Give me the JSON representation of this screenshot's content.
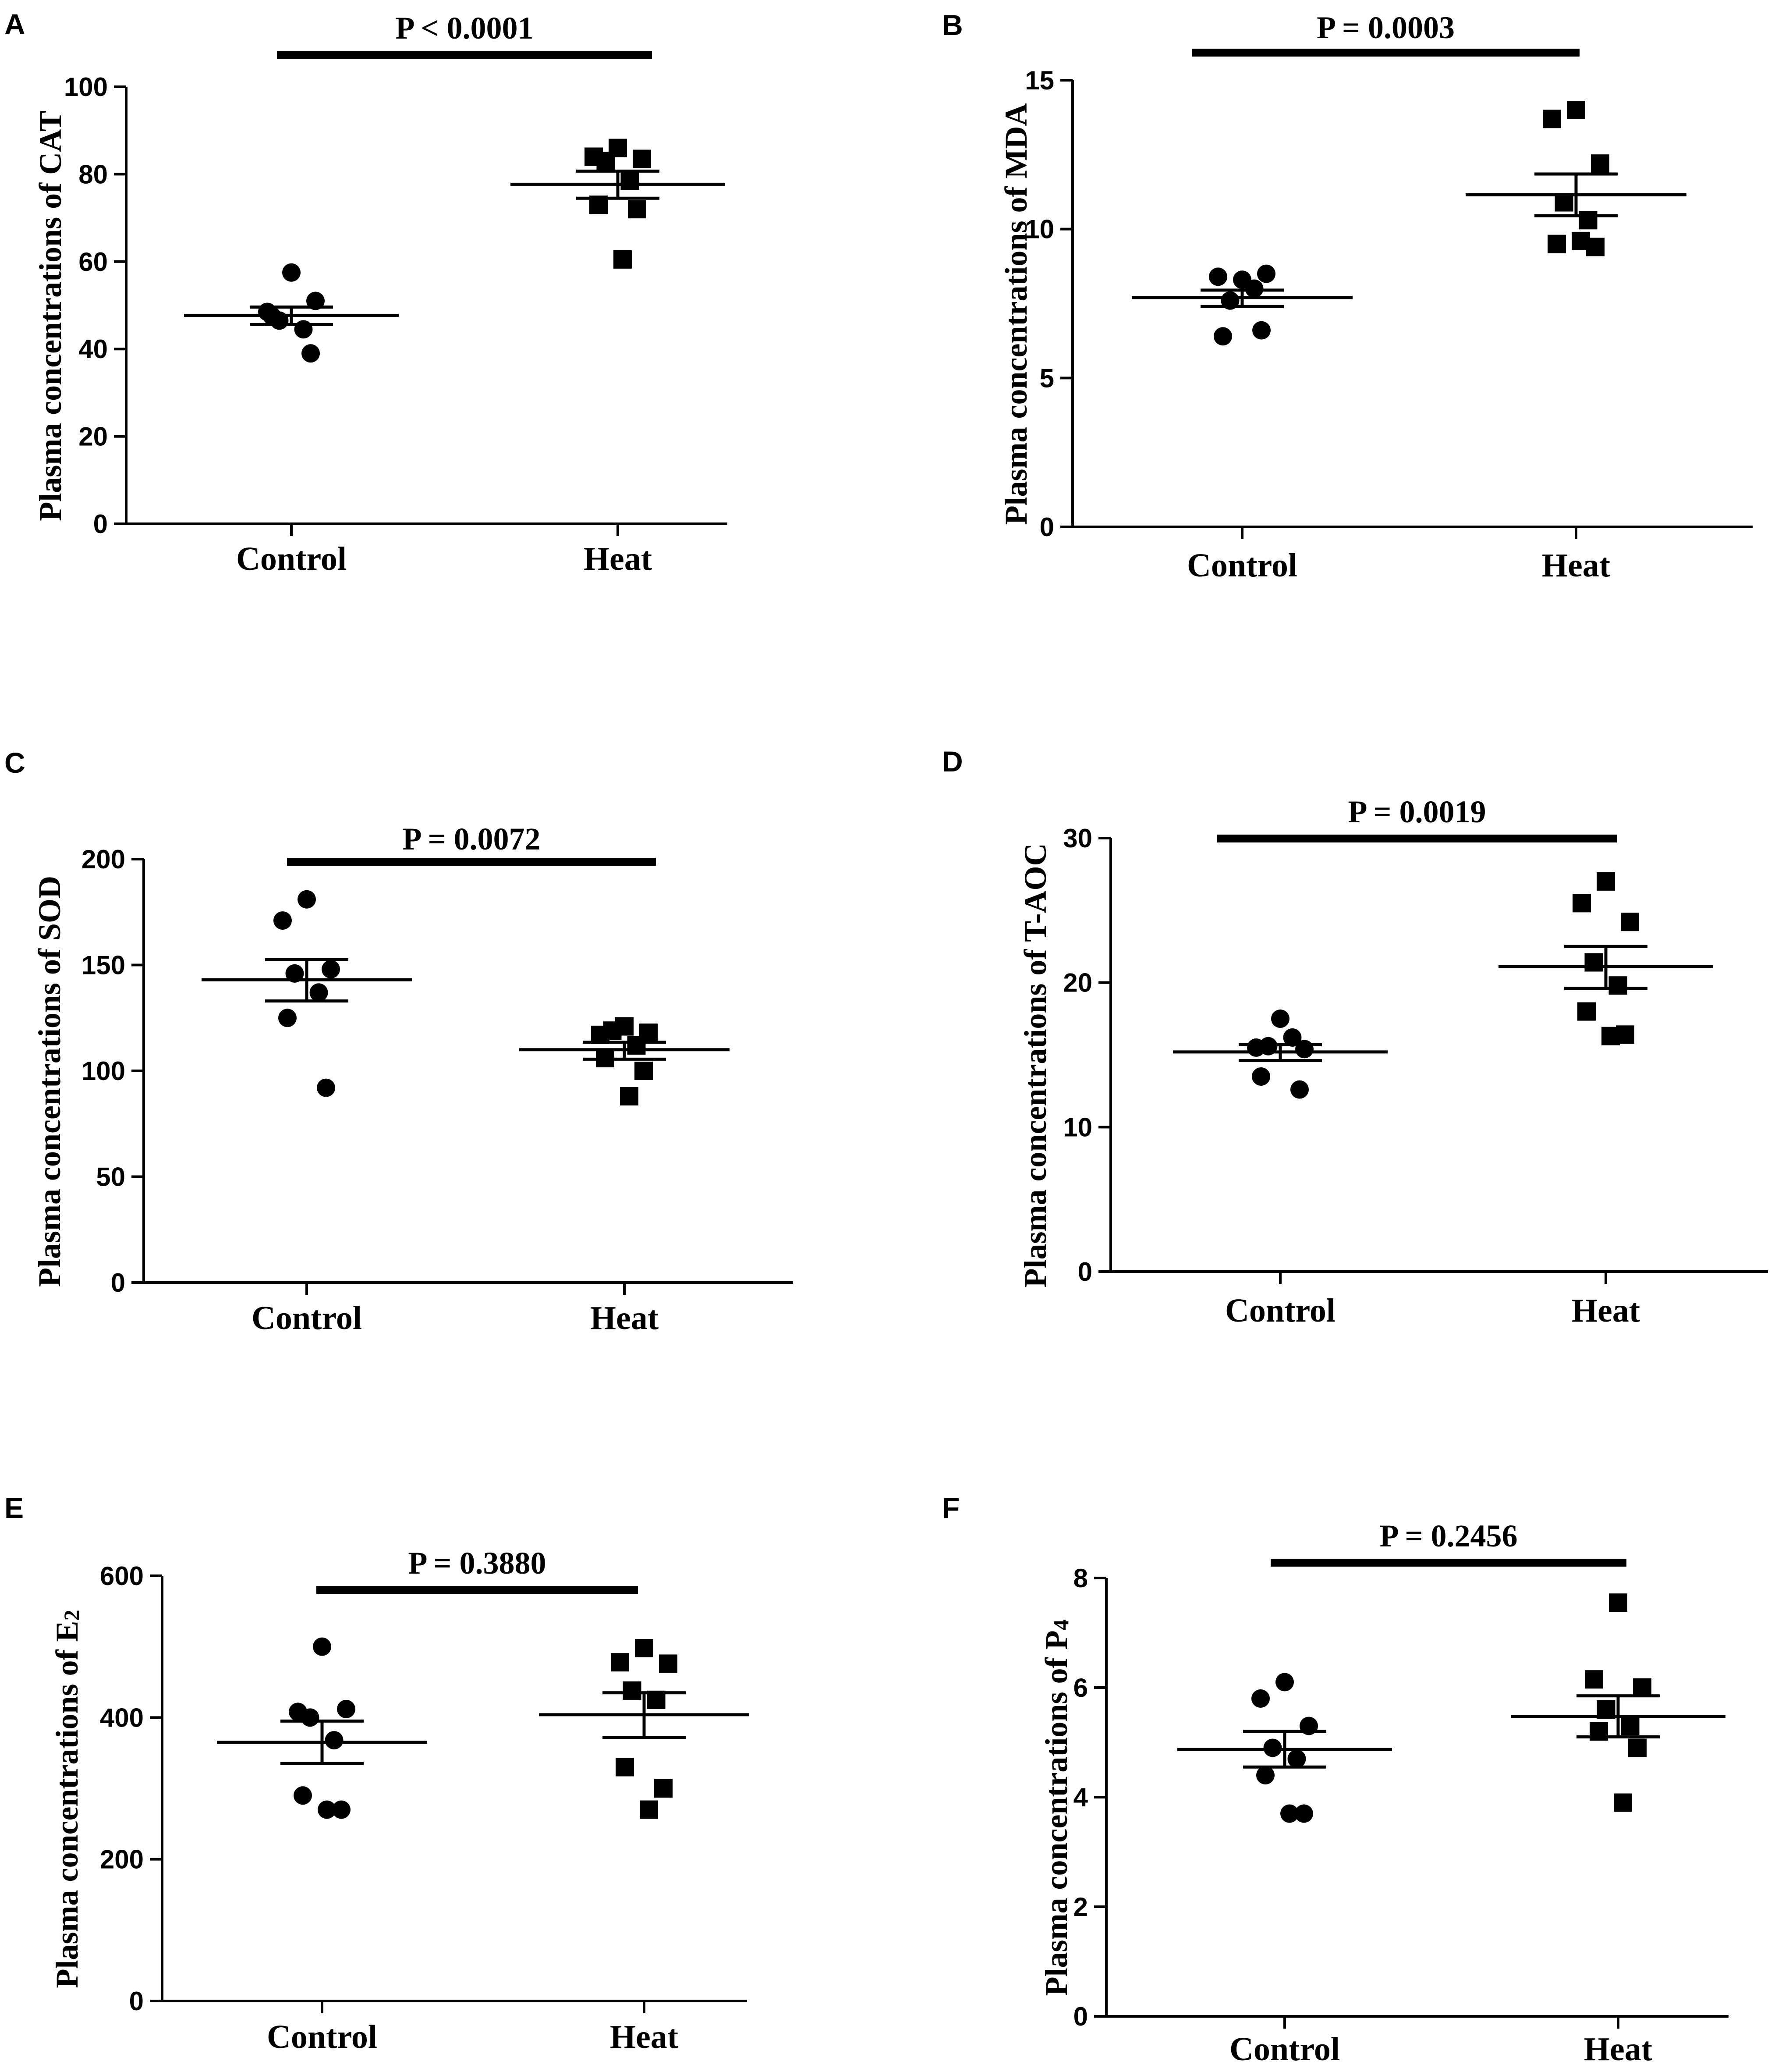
{
  "chart_data": [
    {
      "panel": "A",
      "type": "scatter",
      "ylabel": "Plasma concentrations of CAT",
      "ylabel_sub": "",
      "categories": [
        "Control",
        "Heat"
      ],
      "yticks": [
        0,
        20,
        40,
        60,
        80,
        100
      ],
      "ylim": [
        0,
        100
      ],
      "pvalue": "P < 0.0001",
      "series": [
        {
          "name": "Control",
          "marker": "circle",
          "values": [
            57.5,
            48.5,
            51,
            46.5,
            44.5,
            47.5,
            39
          ],
          "mean": 47.7,
          "sem_upper": 49.6,
          "sem_lower": 45.6
        },
        {
          "name": "Heat",
          "marker": "square",
          "values": [
            86,
            84,
            83.5,
            83,
            78.5,
            73,
            72,
            60.5
          ],
          "mean": 77.7,
          "sem_upper": 80.7,
          "sem_lower": 74.5
        }
      ]
    },
    {
      "panel": "B",
      "type": "scatter",
      "ylabel": "Plasma concentrations of MDA",
      "ylabel_sub": "",
      "categories": [
        "Control",
        "Heat"
      ],
      "yticks": [
        0,
        5,
        10,
        15
      ],
      "ylim": [
        0,
        15
      ],
      "pvalue": "P = 0.0003",
      "series": [
        {
          "name": "Control",
          "marker": "circle",
          "values": [
            8.3,
            8.4,
            8.5,
            7.6,
            8.0,
            6.4,
            6.6
          ],
          "mean": 7.7,
          "sem_upper": 7.95,
          "sem_lower": 7.4
        },
        {
          "name": "Heat",
          "marker": "square",
          "values": [
            14.0,
            13.7,
            12.2,
            10.9,
            10.3,
            9.5,
            9.4,
            9.6
          ],
          "mean": 11.15,
          "sem_upper": 11.85,
          "sem_lower": 10.45
        }
      ]
    },
    {
      "panel": "C",
      "type": "scatter",
      "ylabel": "Plasma concentrations of SOD",
      "ylabel_sub": "",
      "categories": [
        "Control",
        "Heat"
      ],
      "yticks": [
        0,
        50,
        100,
        150,
        200
      ],
      "ylim": [
        0,
        200
      ],
      "pvalue": "P = 0.0072",
      "series": [
        {
          "name": "Control",
          "marker": "circle",
          "values": [
            181,
            171,
            148,
            146,
            137,
            125,
            92
          ],
          "mean": 143,
          "sem_upper": 152.5,
          "sem_lower": 133
        },
        {
          "name": "Heat",
          "marker": "square",
          "values": [
            121,
            117,
            118,
            119,
            112,
            106,
            100,
            88
          ],
          "mean": 110,
          "sem_upper": 113.5,
          "sem_lower": 105.5
        }
      ]
    },
    {
      "panel": "D",
      "type": "scatter",
      "ylabel": "Plasma concentrations of T-AOC",
      "ylabel_sub": "",
      "categories": [
        "Control",
        "Heat"
      ],
      "yticks": [
        0,
        10,
        20,
        30
      ],
      "ylim": [
        0,
        30
      ],
      "pvalue": "P = 0.0019",
      "series": [
        {
          "name": "Control",
          "marker": "circle",
          "values": [
            17.5,
            15.5,
            15.4,
            15.6,
            16.2,
            13.5,
            12.6
          ],
          "mean": 15.2,
          "sem_upper": 15.7,
          "sem_lower": 14.6
        },
        {
          "name": "Heat",
          "marker": "square",
          "values": [
            27.0,
            25.5,
            24.2,
            21.4,
            19.8,
            18.0,
            16.4,
            16.3
          ],
          "mean": 21.1,
          "sem_upper": 22.5,
          "sem_lower": 19.6
        }
      ]
    },
    {
      "panel": "E",
      "type": "scatter",
      "ylabel": "Plasma concentrations of E",
      "ylabel_sub": "2",
      "categories": [
        "Control",
        "Heat"
      ],
      "yticks": [
        0,
        200,
        400,
        600
      ],
      "ylim": [
        0,
        600
      ],
      "pvalue": "P = 0.3880",
      "series": [
        {
          "name": "Control",
          "marker": "circle",
          "values": [
            500,
            408,
            412,
            400,
            368,
            290,
            270,
            270
          ],
          "mean": 365,
          "sem_upper": 395,
          "sem_lower": 335
        },
        {
          "name": "Heat",
          "marker": "square",
          "values": [
            498,
            478,
            476,
            438,
            425,
            330,
            300,
            270
          ],
          "mean": 404,
          "sem_upper": 435,
          "sem_lower": 372
        }
      ]
    },
    {
      "panel": "F",
      "type": "scatter",
      "ylabel": "Plasma concentrations of P",
      "ylabel_sub": "4",
      "categories": [
        "Control",
        "Heat"
      ],
      "yticks": [
        0,
        2,
        4,
        6,
        8
      ],
      "ylim": [
        0,
        8
      ],
      "pvalue": "P = 0.2456",
      "series": [
        {
          "name": "Control",
          "marker": "circle",
          "values": [
            6.1,
            5.8,
            5.3,
            4.9,
            4.7,
            4.4,
            3.7,
            3.7
          ],
          "mean": 4.87,
          "sem_upper": 5.2,
          "sem_lower": 4.55
        },
        {
          "name": "Heat",
          "marker": "square",
          "values": [
            7.55,
            6.15,
            6.0,
            5.6,
            5.3,
            5.2,
            4.9,
            3.9
          ],
          "mean": 5.47,
          "sem_upper": 5.85,
          "sem_lower": 5.1
        }
      ]
    }
  ]
}
